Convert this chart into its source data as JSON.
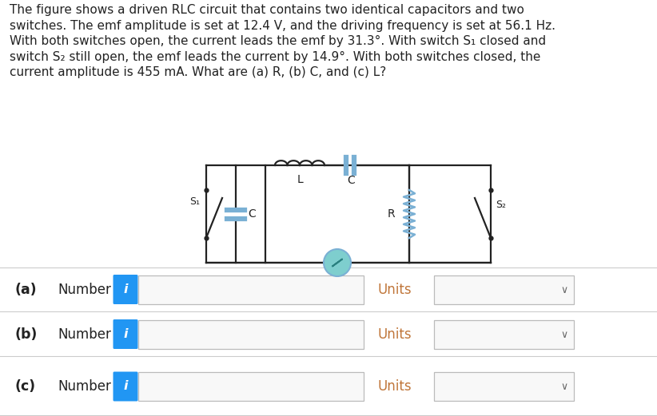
{
  "title_text": "The figure shows a driven RLC circuit that contains two identical capacitors and two\nswitches. The emf amplitude is set at 12.4 V, and the driving frequency is set at 56.1 Hz.\nWith both switches open, the current leads the emf by 31.3°. With switch S₁ closed and\nswitch S₂ still open, the emf leads the current by 14.9°. With both switches closed, the\ncurrent amplitude is 455 mA. What are (a) R, (b) C, and (c) L?",
  "bg_color": "#ffffff",
  "row_labels": [
    "(a)",
    "(b)",
    "(c)"
  ],
  "row_sublabels": [
    "Number",
    "Number",
    "Number"
  ],
  "units_label": "Units",
  "input_box_color": "#ffffff",
  "input_border_color": "#bbbbbb",
  "icon_bg_color": "#2196F3",
  "icon_text_color": "#ffffff",
  "row_bg_color": "#ffffff",
  "row_border_color": "#cccccc",
  "circuit_wire_color": "#222222",
  "circuit_component_color": "#7ab0d4",
  "resistor_color": "#7ab0d4",
  "emf_fill": "#7ecece",
  "emf_edge": "#7ab0d4",
  "text_color": "#222222",
  "label_color": "#c0763a",
  "chevron_color": "#666666"
}
